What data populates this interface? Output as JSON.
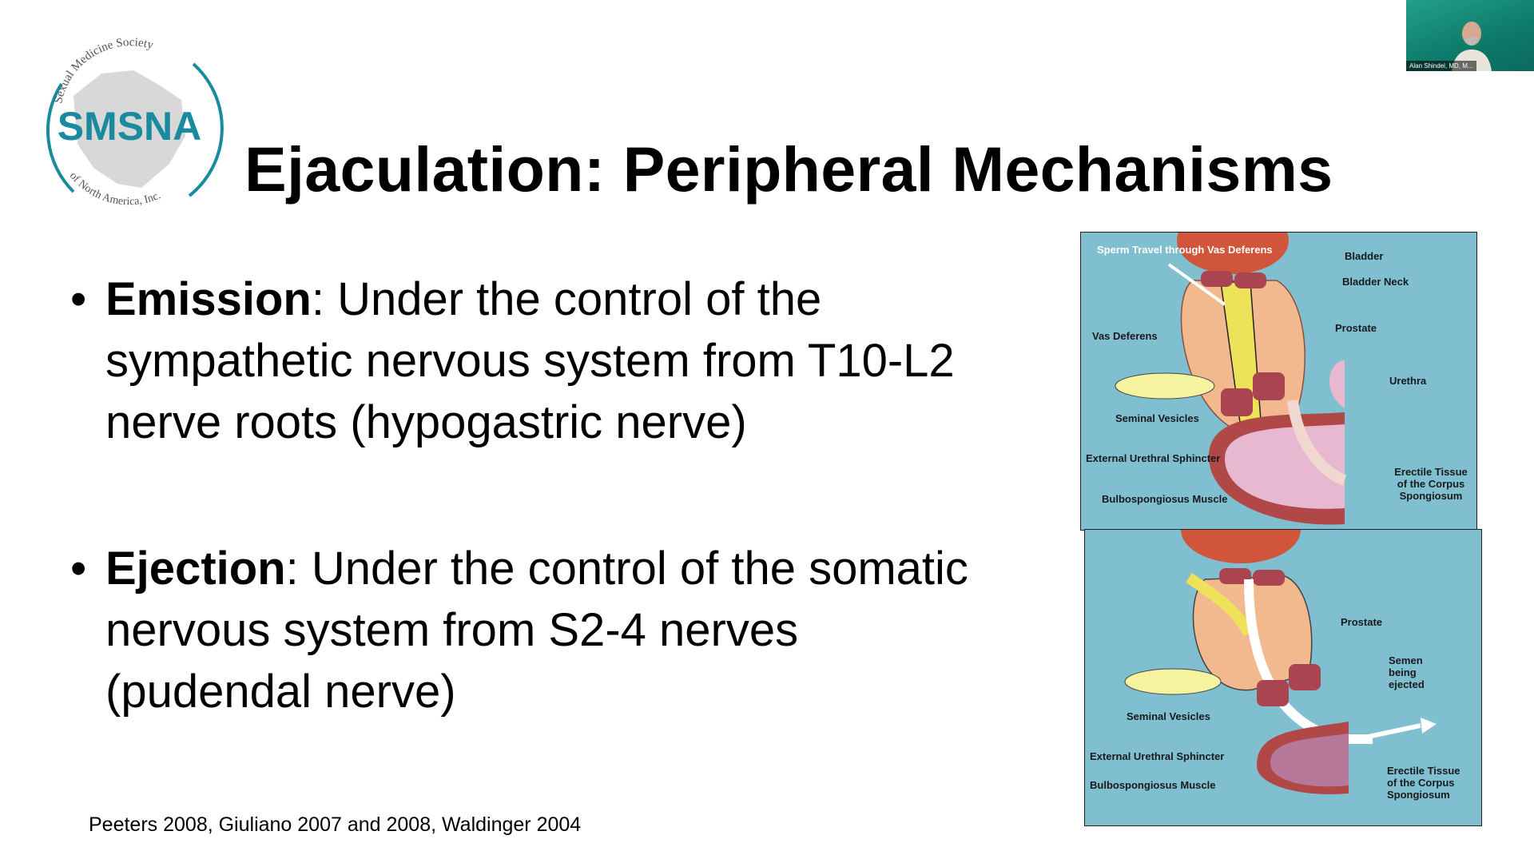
{
  "logo": {
    "text": "SMSNA",
    "arc_top": "Sexual Medicine Society",
    "arc_bottom": "of North America, Inc.",
    "color": "#1a8a9e"
  },
  "slide": {
    "title": "Ejaculation: Peripheral Mechanisms",
    "bullets": [
      {
        "term": "Emission",
        "text": ": Under the control of the sympathetic nervous system from T10-L2 nerve roots (hypogastric nerve)"
      },
      {
        "term": "Ejection",
        "text": ": Under the control of the somatic nervous system from S2-4 nerves (pudendal nerve)"
      }
    ],
    "citation": "Peeters 2008, Giuliano 2007 and 2008, Waldinger 2004"
  },
  "diagram_emission": {
    "labels": {
      "sperm_travel": "Sperm Travel through Vas Deferens",
      "bladder": "Bladder",
      "bladder_neck": "Bladder Neck",
      "vas_deferens": "Vas Deferens",
      "prostate": "Prostate",
      "urethra": "Urethra",
      "seminal_vesicles": "Seminal Vesicles",
      "external_urethral_sphincter": "External Urethral Sphincter",
      "erectile_tissue": "Erectile Tissue of the Corpus Spongiosum",
      "bulbospongiosus": "Bulbospongiosus Muscle"
    }
  },
  "diagram_ejection": {
    "labels": {
      "prostate": "Prostate",
      "semen_ejected": "Semen being ejected",
      "seminal_vesicles": "Seminal Vesicles",
      "external_urethral_sphincter": "External Urethral Sphincter",
      "bulbospongiosus": "Bulbospongiosus Muscle",
      "erectile_tissue": "Erectile Tissue of the Corpus Spongiosum"
    }
  },
  "webcam": {
    "participant_name": "Alan Shindel, MD, M..."
  }
}
